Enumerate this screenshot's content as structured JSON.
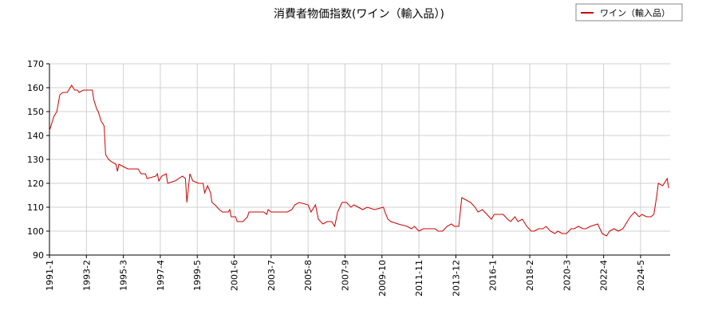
{
  "chart_data": {
    "type": "line",
    "title": "消費者物価指数(ワイン（輸入品）)",
    "x": [
      "1991-1",
      "1991-4",
      "1991-6",
      "1991-8",
      "1991-10",
      "1992-1",
      "1992-3",
      "1992-4",
      "1992-6",
      "1992-8",
      "1992-9",
      "1992-12",
      "1993-6",
      "1993-7",
      "1993-9",
      "1993-10",
      "1993-12",
      "1994-2",
      "1994-3",
      "1994-5",
      "1994-7",
      "1994-10",
      "1994-11",
      "1994-12",
      "1995-3",
      "1995-6",
      "1996-1",
      "1996-3",
      "1996-6",
      "1996-7",
      "1997-1",
      "1997-2",
      "1997-3",
      "1997-5",
      "1997-8",
      "1997-9",
      "1998-2",
      "1998-7",
      "1998-9",
      "1998-10",
      "1998-12",
      "1999-2",
      "1999-6",
      "1999-9",
      "1999-10",
      "1999-12",
      "2000-2",
      "2000-3",
      "2000-5",
      "2000-8",
      "2000-10",
      "2001-2",
      "2001-3",
      "2001-4",
      "2001-7",
      "2001-8",
      "2001-12",
      "2002-3",
      "2002-4",
      "2003-2",
      "2003-4",
      "2003-5",
      "2003-7",
      "2004-6",
      "2004-9",
      "2004-11",
      "2005-2",
      "2005-8",
      "2005-10",
      "2006-1",
      "2006-3",
      "2006-6",
      "2006-9",
      "2006-12",
      "2007-2",
      "2007-4",
      "2007-7",
      "2007-10",
      "2008-1",
      "2008-3",
      "2008-9",
      "2008-12",
      "2009-5",
      "2009-11",
      "2009-12",
      "2010-2",
      "2010-4",
      "2010-9",
      "2011-3",
      "2011-6",
      "2011-8",
      "2011-11",
      "2012-2",
      "2012-7",
      "2012-10",
      "2012-12",
      "2013-3",
      "2013-6",
      "2013-9",
      "2013-11",
      "2014-2",
      "2014-4",
      "2014-7",
      "2014-10",
      "2015-1",
      "2015-3",
      "2015-6",
      "2015-9",
      "2015-12",
      "2016-2",
      "2016-8",
      "2016-11",
      "2017-1",
      "2017-4",
      "2017-6",
      "2017-9",
      "2017-12",
      "2018-3",
      "2018-5",
      "2018-8",
      "2018-11",
      "2019-1",
      "2019-4",
      "2019-7",
      "2019-9",
      "2019-12",
      "2020-3",
      "2020-6",
      "2020-8",
      "2020-11",
      "2021-2",
      "2021-4",
      "2021-7",
      "2021-12",
      "2022-3",
      "2022-6",
      "2022-8",
      "2022-11",
      "2023-2",
      "2023-5",
      "2023-7",
      "2023-10",
      "2024-1",
      "2024-4",
      "2024-6",
      "2024-9",
      "2024-12",
      "2025-2",
      "2025-4",
      "2025-5",
      "2025-8",
      "2025-11",
      "2025-12"
    ],
    "series": [
      {
        "name": "ワイン（輸入品）",
        "color": "#cc0000",
        "values": [
          142,
          148,
          150,
          157,
          158,
          158,
          160,
          161,
          159,
          159,
          158,
          159,
          159,
          155,
          151,
          150,
          146,
          144,
          132,
          130,
          129,
          128,
          125,
          128,
          127,
          126,
          126,
          124,
          124,
          122,
          123,
          124,
          121,
          123,
          124,
          120,
          121,
          123,
          122,
          112,
          124,
          121,
          120,
          120,
          116,
          119,
          116,
          112,
          111,
          109,
          108,
          108,
          109,
          106,
          106,
          104,
          104,
          106,
          108,
          108,
          107,
          109,
          108,
          108,
          109,
          111,
          112,
          111,
          108,
          111,
          105,
          103,
          104,
          104,
          102,
          108,
          112,
          112,
          110,
          111,
          109,
          110,
          109,
          110,
          108,
          105,
          104,
          103,
          102,
          101,
          102,
          100,
          101,
          101,
          101,
          100,
          100,
          102,
          103,
          102,
          102,
          114,
          113,
          112,
          110,
          108,
          109,
          107,
          105,
          107,
          107,
          105,
          104,
          106,
          104,
          105,
          102,
          100,
          100,
          101,
          101,
          102,
          100,
          99,
          100,
          99,
          99,
          101,
          101,
          102,
          101,
          101,
          102,
          103,
          99,
          98,
          100,
          101,
          100,
          101,
          103,
          106,
          108,
          106,
          107,
          106,
          106,
          107,
          115,
          120,
          119,
          122,
          118
        ]
      }
    ],
    "xlim": [
      "1991-1",
      "2026-1"
    ],
    "xticks": [
      "1991-1",
      "1993-2",
      "1995-3",
      "1997-4",
      "1999-5",
      "2001-6",
      "2003-7",
      "2005-8",
      "2007-9",
      "2009-10",
      "2011-11",
      "2013-12",
      "2016-1",
      "2018-2",
      "2020-3",
      "2022-4",
      "2024-5"
    ],
    "ylim": [
      90,
      170
    ],
    "yticks": [
      90,
      100,
      110,
      120,
      130,
      140,
      150,
      160,
      170
    ],
    "grid": true,
    "legend": "upper right"
  }
}
